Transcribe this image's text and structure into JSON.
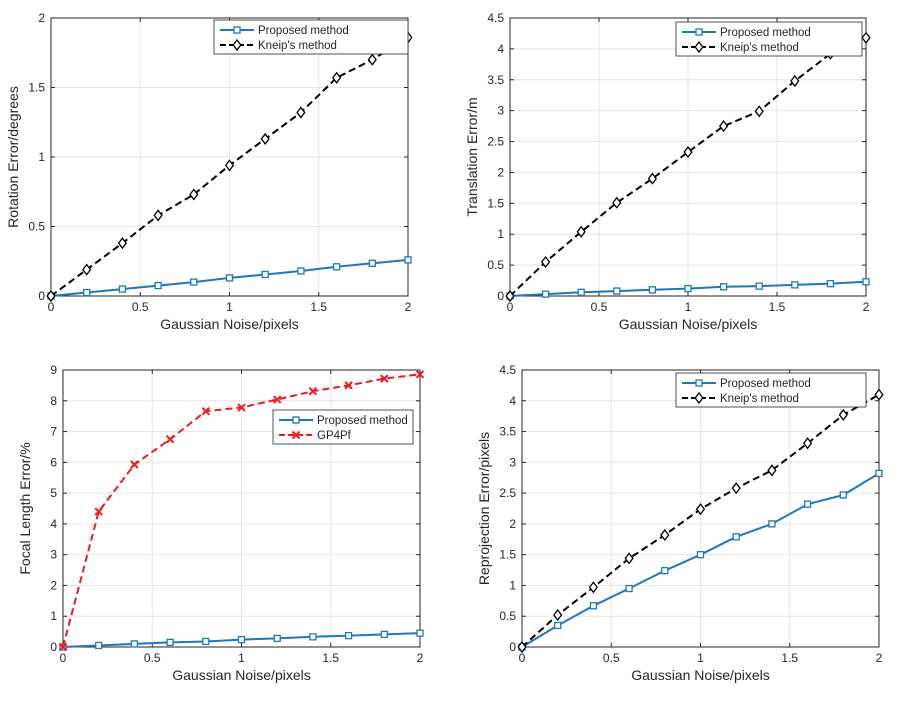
{
  "colors": {
    "proposed": "#1f77c0",
    "kneip": "#000000",
    "gp4pf": "#ee1c1c",
    "grid": "#e6e6e6",
    "axis": "#262626"
  },
  "chart_data": [
    {
      "type": "line",
      "id": "rotation",
      "title": "",
      "xlabel": "Gaussian Noise/pixels",
      "ylabel": "Rotation Error/degrees",
      "xlim": [
        0,
        2
      ],
      "ylim": [
        0,
        2
      ],
      "xticks": [
        0,
        0.5,
        1,
        1.5,
        2
      ],
      "xtick_labels": [
        "0",
        "0.5",
        "1",
        "1.5",
        "2"
      ],
      "yticks": [
        0,
        0.5,
        1,
        1.5,
        2
      ],
      "ytick_labels": [
        "0",
        "0.5",
        "1",
        "1.5",
        "2"
      ],
      "grid": true,
      "legend_position": "top-right",
      "x": [
        0,
        0.2,
        0.4,
        0.6,
        0.8,
        1.0,
        1.2,
        1.4,
        1.6,
        1.8,
        2.0
      ],
      "series": [
        {
          "name": "Proposed method",
          "style": "solid",
          "marker": "square",
          "color_key": "proposed",
          "values": [
            0,
            0.025,
            0.05,
            0.075,
            0.1,
            0.13,
            0.155,
            0.18,
            0.21,
            0.235,
            0.26
          ]
        },
        {
          "name": "Kneip's method",
          "style": "dashed",
          "marker": "diamond",
          "color_key": "kneip",
          "values": [
            0,
            0.19,
            0.38,
            0.58,
            0.73,
            0.94,
            1.13,
            1.32,
            1.57,
            1.7,
            1.86
          ]
        }
      ]
    },
    {
      "type": "line",
      "id": "translation",
      "title": "",
      "xlabel": "Gaussian Noise/pixels",
      "ylabel": "Translation Error/m",
      "xlim": [
        0,
        2
      ],
      "ylim": [
        0,
        4.5
      ],
      "xticks": [
        0,
        0.5,
        1,
        1.5,
        2
      ],
      "xtick_labels": [
        "0",
        "0.5",
        "1",
        "1.5",
        "2"
      ],
      "yticks": [
        0,
        0.5,
        1,
        1.5,
        2,
        2.5,
        3,
        3.5,
        4,
        4.5
      ],
      "ytick_labels": [
        "0",
        "0.5",
        "1",
        "1.5",
        "2",
        "2.5",
        "3",
        "3.5",
        "4",
        "4.5"
      ],
      "grid": true,
      "legend_position": "top-right",
      "x": [
        0,
        0.2,
        0.4,
        0.6,
        0.8,
        1.0,
        1.2,
        1.4,
        1.6,
        1.8,
        2.0
      ],
      "series": [
        {
          "name": "Proposed method",
          "style": "solid",
          "marker": "square",
          "color_key": "proposed",
          "values": [
            0,
            0.03,
            0.06,
            0.08,
            0.1,
            0.12,
            0.15,
            0.16,
            0.18,
            0.2,
            0.23
          ]
        },
        {
          "name": "Kneip's method",
          "style": "dashed",
          "marker": "diamond",
          "color_key": "kneip",
          "values": [
            0,
            0.55,
            1.04,
            1.51,
            1.9,
            2.33,
            2.75,
            2.99,
            3.48,
            3.92,
            4.18
          ]
        }
      ]
    },
    {
      "type": "line",
      "id": "focal",
      "title": "",
      "xlabel": "Gaussian Noise/pixels",
      "ylabel": "Focal Length Error/%",
      "xlim": [
        0,
        2
      ],
      "ylim": [
        0,
        9
      ],
      "xticks": [
        0,
        0.5,
        1,
        1.5,
        2
      ],
      "xtick_labels": [
        "0",
        "0.5",
        "1",
        "1.5",
        "2"
      ],
      "yticks": [
        0,
        1,
        2,
        3,
        4,
        5,
        6,
        7,
        8,
        9
      ],
      "ytick_labels": [
        "0",
        "1",
        "2",
        "3",
        "4",
        "5",
        "6",
        "7",
        "8",
        "9"
      ],
      "grid": true,
      "legend_position": "middle-right",
      "x": [
        0,
        0.2,
        0.4,
        0.6,
        0.8,
        1.0,
        1.2,
        1.4,
        1.6,
        1.8,
        2.0
      ],
      "series": [
        {
          "name": "Proposed method",
          "style": "solid",
          "marker": "square",
          "color_key": "proposed",
          "values": [
            0,
            0.05,
            0.1,
            0.15,
            0.18,
            0.24,
            0.28,
            0.33,
            0.37,
            0.41,
            0.45
          ]
        },
        {
          "name": "GP4Pf",
          "style": "dashed",
          "marker": "x",
          "color_key": "gp4pf",
          "values": [
            0,
            4.4,
            5.93,
            6.75,
            7.66,
            7.78,
            8.04,
            8.31,
            8.5,
            8.72,
            8.86
          ]
        }
      ]
    },
    {
      "type": "line",
      "id": "reprojection",
      "title": "",
      "xlabel": "Gaussian Noise/pixels",
      "ylabel": "Reprojection Error/pixels",
      "xlim": [
        0,
        2
      ],
      "ylim": [
        0,
        4.5
      ],
      "xticks": [
        0,
        0.5,
        1,
        1.5,
        2
      ],
      "xtick_labels": [
        "0",
        "0.5",
        "1",
        "1.5",
        "2"
      ],
      "yticks": [
        0,
        0.5,
        1,
        1.5,
        2,
        2.5,
        3,
        3.5,
        4,
        4.5
      ],
      "ytick_labels": [
        "0",
        "0.5",
        "1",
        "1.5",
        "2",
        "2.5",
        "3",
        "3.5",
        "4",
        "4.5"
      ],
      "grid": true,
      "legend_position": "top-right",
      "x": [
        0,
        0.2,
        0.4,
        0.6,
        0.8,
        1.0,
        1.2,
        1.4,
        1.6,
        1.8,
        2.0
      ],
      "series": [
        {
          "name": "Proposed method",
          "style": "solid",
          "marker": "square",
          "color_key": "proposed",
          "values": [
            0,
            0.35,
            0.67,
            0.95,
            1.24,
            1.5,
            1.79,
            2.0,
            2.32,
            2.47,
            2.82
          ]
        },
        {
          "name": "Kneip's method",
          "style": "dashed",
          "marker": "diamond",
          "color_key": "kneip",
          "values": [
            0,
            0.52,
            0.97,
            1.44,
            1.82,
            2.24,
            2.58,
            2.87,
            3.31,
            3.77,
            4.1
          ]
        }
      ]
    }
  ]
}
